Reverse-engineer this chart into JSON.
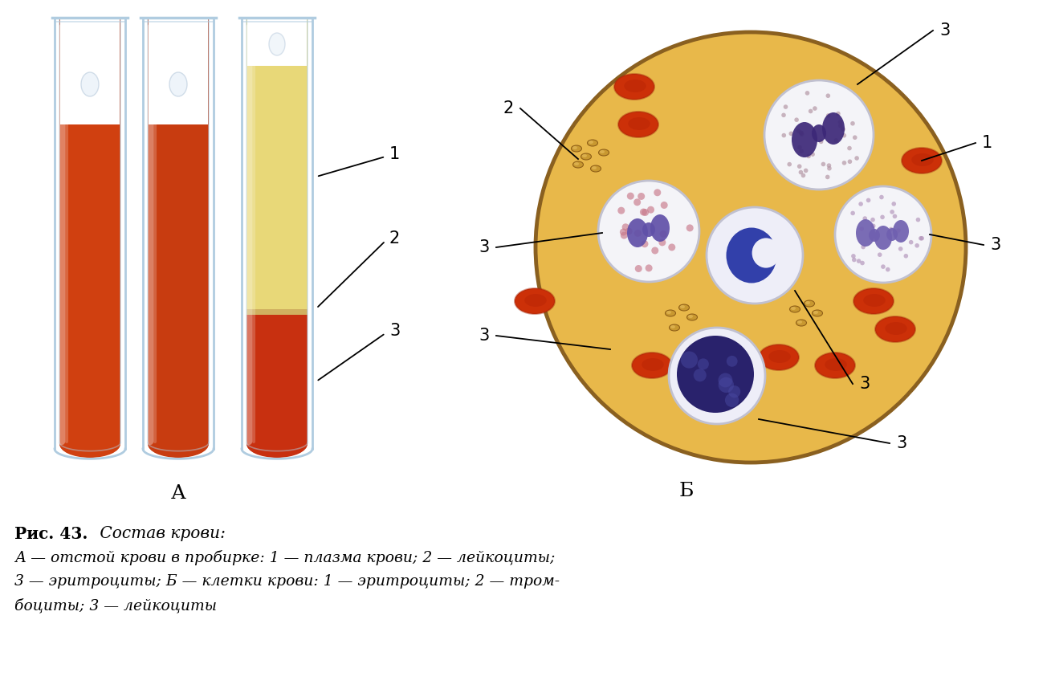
{
  "bg_color": "#ffffff",
  "label_A": "А",
  "label_B": "Б",
  "tube_glass_color": "#b0cce0",
  "tube1_fill": "#d04010",
  "tube2_fill": "#c83c10",
  "tube3_plasma": "#e8d878",
  "tube3_cells": "#c83010",
  "circle_bg": "#e8b84a",
  "circle_border": "#8a6020",
  "erythrocyte_color": "#cc3008",
  "erythrocyte_shadow": "#a02005",
  "platelet_color": "#c89830",
  "platelet_border": "#906018",
  "leukocyte_bg": "#f4f4f8",
  "leukocyte_border": "#c0c0d0",
  "caption_bold": "Рис. 43.",
  "caption_italic": " Состав крови:",
  "caption_line2": "А — отстой крови в пробирке: 1 — плазма крови; 2 — лейкоциты;",
  "caption_line3": "3 — эритроциты; Б — клетки крови: 1 — эритроциты; 2 — тром-",
  "caption_line4": "боциты; 3 — лейкоциты"
}
